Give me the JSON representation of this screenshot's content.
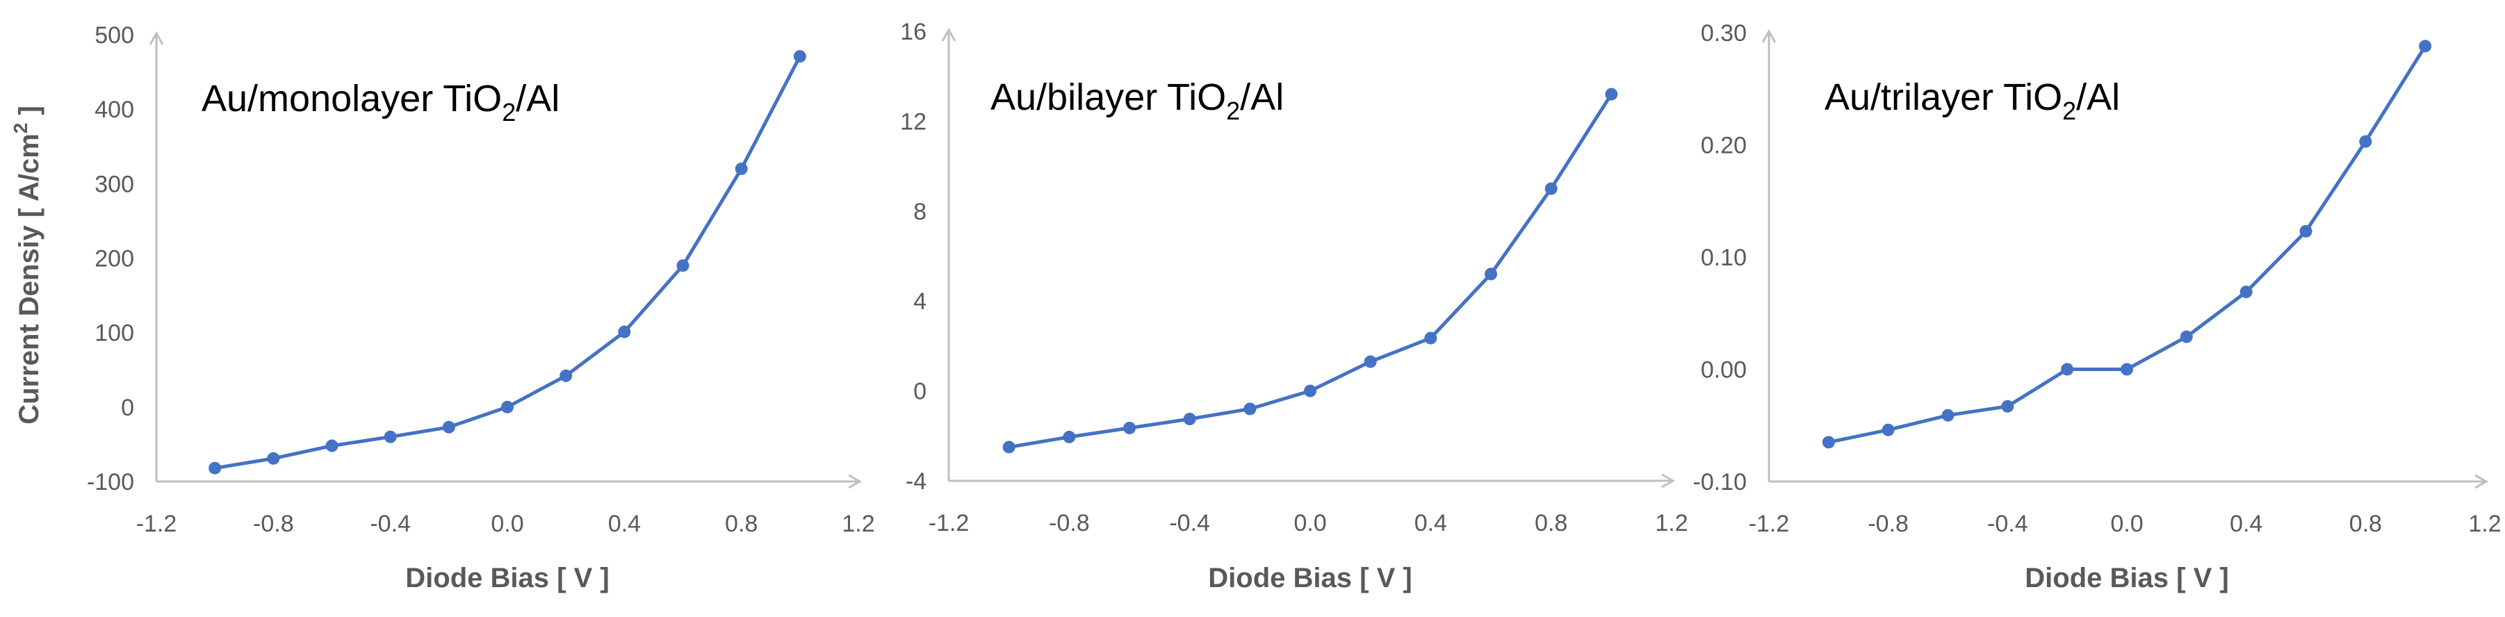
{
  "colors": {
    "series": "#4472c4",
    "axis": "#bfbfbf",
    "text": "#595959"
  },
  "chart_data": [
    {
      "type": "scatter",
      "title": "Au/monolayer TiO",
      "title_sub": "2",
      "title_tail": "/Al",
      "ylabel": "Current Densiy [ A/cm",
      "ylabel_sup": "2",
      "ylabel_tail": " ]",
      "xlabel": "Diode Bias [ V ]",
      "xlim": [
        -1.2,
        1.2
      ],
      "ylim": [
        -100,
        500
      ],
      "xticks": [
        "-1.2",
        "-0.8",
        "-0.4",
        "0.0",
        "0.4",
        "0.8",
        "1.2"
      ],
      "yticks": [
        "-100",
        "0",
        "100",
        "200",
        "300",
        "400",
        "500"
      ],
      "grid": false,
      "series": [
        {
          "x": [
            -1.0,
            -0.8,
            -0.6,
            -0.4,
            -0.2,
            0.0,
            0.2,
            0.4,
            0.6,
            0.8,
            1.0
          ],
          "y": [
            -82,
            -69,
            -52,
            -40,
            -27,
            0,
            42,
            101,
            190,
            320,
            471
          ]
        }
      ]
    },
    {
      "type": "scatter",
      "title": "Au/bilayer TiO",
      "title_sub": "2",
      "title_tail": "/Al",
      "xlabel": "Diode Bias [ V ]",
      "xlim": [
        -1.2,
        1.2
      ],
      "ylim": [
        -4,
        16
      ],
      "xticks": [
        "-1.2",
        "-0.8",
        "-0.4",
        "0.0",
        "0.4",
        "0.8",
        "1.2"
      ],
      "yticks": [
        "-4",
        "0",
        "4",
        "8",
        "12",
        "16"
      ],
      "grid": false,
      "series": [
        {
          "x": [
            -1.0,
            -0.8,
            -0.6,
            -0.4,
            -0.2,
            0.0,
            0.2,
            0.4,
            0.6,
            0.8,
            1.0
          ],
          "y": [
            -2.5,
            -2.05,
            -1.65,
            -1.25,
            -0.8,
            0.0,
            1.3,
            2.35,
            5.2,
            9.0,
            13.2
          ]
        }
      ]
    },
    {
      "type": "scatter",
      "title": "Au/trilayer TiO",
      "title_sub": "2",
      "title_tail": "/Al",
      "xlabel": "Diode Bias [ V ]",
      "xlim": [
        -1.2,
        1.2
      ],
      "ylim": [
        -0.1,
        0.3
      ],
      "xticks": [
        "-1.2",
        "-0.8",
        "-0.4",
        "0.0",
        "0.4",
        "0.8",
        "1.2"
      ],
      "yticks": [
        "-0.10",
        "0.00",
        "0.10",
        "0.20",
        "0.30"
      ],
      "grid": false,
      "series": [
        {
          "x": [
            -1.0,
            -0.8,
            -0.6,
            -0.4,
            -0.2,
            0.0,
            0.2,
            0.4,
            0.6,
            0.8,
            1.0
          ],
          "y": [
            -0.065,
            -0.054,
            -0.041,
            -0.033,
            0.0,
            0.0,
            0.029,
            0.069,
            0.123,
            0.203,
            0.288
          ]
        }
      ]
    }
  ]
}
